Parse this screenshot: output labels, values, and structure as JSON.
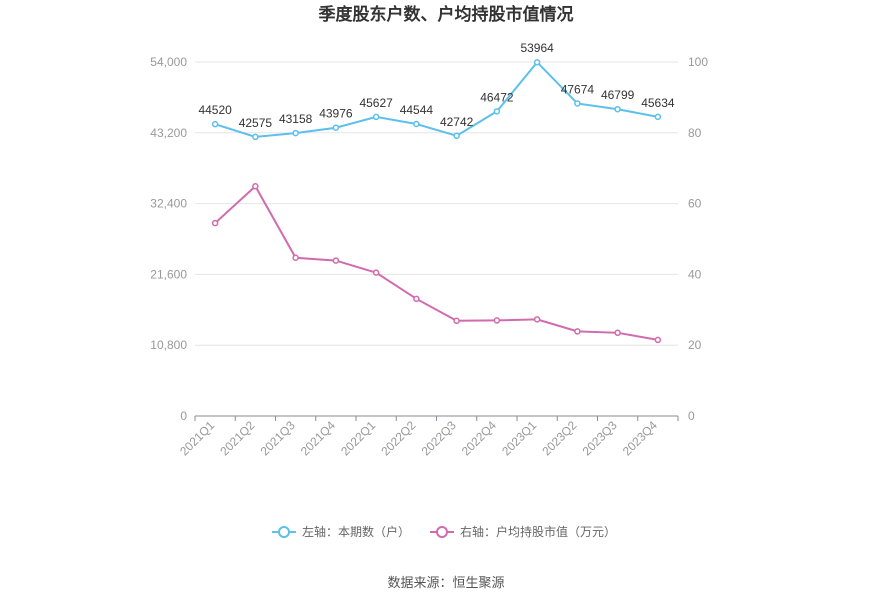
{
  "chart_data": {
    "type": "line",
    "title": "季度股东户数、户均持股市值情况",
    "source": "数据来源：恒生聚源",
    "categories": [
      "2021Q1",
      "2021Q2",
      "2021Q3",
      "2021Q4",
      "2022Q1",
      "2022Q2",
      "2022Q3",
      "2022Q4",
      "2023Q1",
      "2023Q2",
      "2023Q3",
      "2023Q4"
    ],
    "left_axis": {
      "min": 0,
      "max": 54000,
      "ticks": [
        "0",
        "10,800",
        "21,600",
        "32,400",
        "43,200",
        "54,000"
      ]
    },
    "right_axis": {
      "min": 0,
      "max": 100,
      "ticks": [
        "0",
        "20",
        "40",
        "60",
        "80",
        "100"
      ]
    },
    "series": [
      {
        "name": "左轴：本期数（户）",
        "axis": "left",
        "color": "#5bc0eb",
        "values": [
          44520,
          42575,
          43158,
          43976,
          45627,
          44544,
          42742,
          46472,
          53964,
          47674,
          46799,
          45634
        ],
        "labels": [
          "44520",
          "42575",
          "43158",
          "43976",
          "45627",
          "44544",
          "42742",
          "46472",
          "53964",
          "47674",
          "46799",
          "45634"
        ]
      },
      {
        "name": "右轴：户均持股市值（万元）",
        "axis": "right",
        "color": "#d16aae",
        "values": [
          54.5,
          64.9,
          44.7,
          43.9,
          40.5,
          33.1,
          26.9,
          27.0,
          27.3,
          23.9,
          23.5,
          21.5
        ]
      }
    ],
    "legend_position": "bottom",
    "grid": true
  }
}
